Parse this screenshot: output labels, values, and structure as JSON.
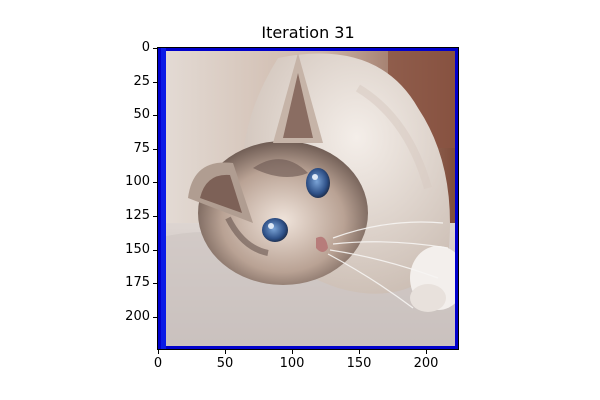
{
  "title": "Iteration 31",
  "image": {
    "subject": "cat",
    "extent": [
      0,
      224,
      224,
      0
    ],
    "overlay": {
      "type": "bounding-box",
      "color": "#0000cc",
      "x0": 0,
      "x1": 224,
      "y0": 0,
      "y1": 224,
      "left_bar_x": [
        2,
        6
      ]
    }
  },
  "axes": {
    "x_ticks": [
      0,
      50,
      100,
      150,
      200
    ],
    "y_ticks": [
      0,
      25,
      50,
      75,
      100,
      125,
      150,
      175,
      200
    ]
  }
}
